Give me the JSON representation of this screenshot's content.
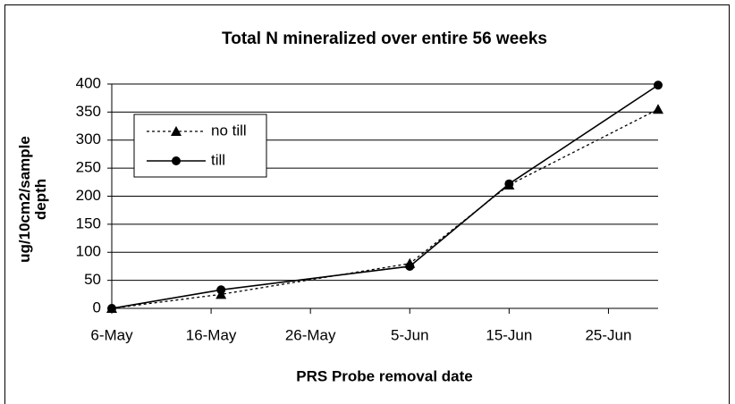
{
  "chart_data": {
    "type": "line",
    "title": "Total N mineralized over entire 56 weeks",
    "x_label": "PRS Probe removal date",
    "y_label": "ug/10cm2/sample depth",
    "x": [
      0,
      11,
      30,
      40,
      55
    ],
    "xlim": [
      0,
      55
    ],
    "xticks": [
      {
        "value": 0,
        "label": "6-May"
      },
      {
        "value": 10,
        "label": "16-May"
      },
      {
        "value": 20,
        "label": "26-May"
      },
      {
        "value": 30,
        "label": "5-Jun"
      },
      {
        "value": 40,
        "label": "15-Jun"
      },
      {
        "value": 50,
        "label": "25-Jun"
      }
    ],
    "ylim": [
      0,
      400
    ],
    "yticks": [
      0,
      50,
      100,
      150,
      200,
      250,
      300,
      350,
      400
    ],
    "grid": true,
    "series": [
      {
        "name": "no till",
        "color": "#000000",
        "dash": true,
        "marker": "triangle",
        "values": [
          0,
          25,
          80,
          220,
          355
        ]
      },
      {
        "name": "till",
        "color": "#000000",
        "dash": false,
        "marker": "circle",
        "values": [
          0,
          33,
          75,
          222,
          398
        ]
      }
    ]
  }
}
